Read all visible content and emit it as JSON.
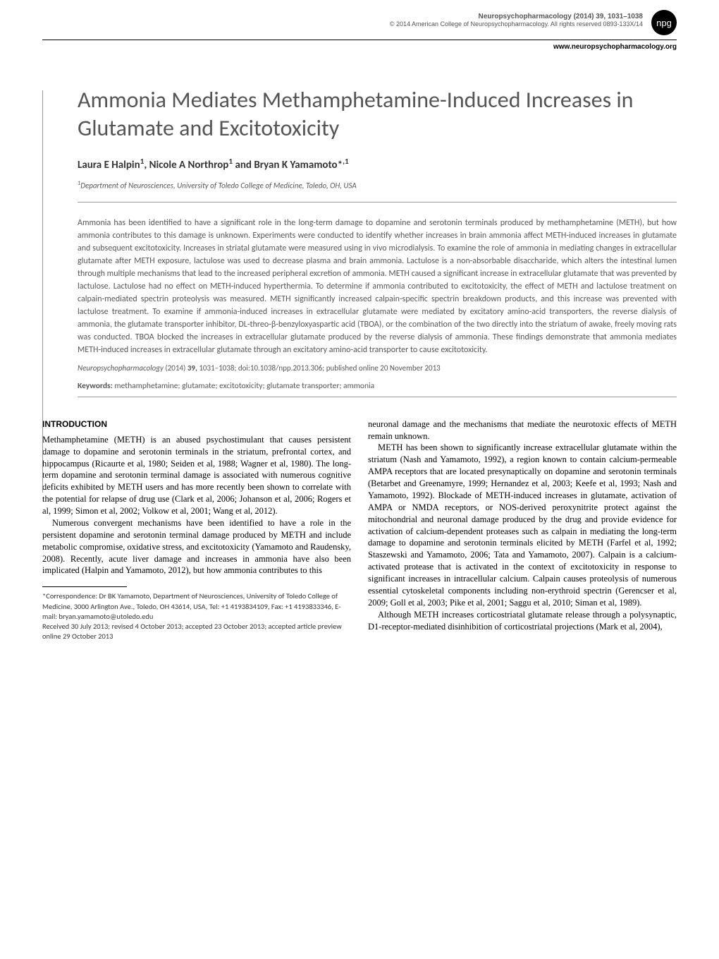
{
  "header": {
    "journal": "Neuropsychopharmacology (2014) 39, 1031–1038",
    "copyright": "© 2014 American College of Neuropsychopharmacology. All rights reserved 0893-133X/14",
    "badge": "npg",
    "website": "www.neuropsychopharmacology.org"
  },
  "title": "Ammonia Mediates Methamphetamine-Induced Increases in Glutamate and Excitotoxicity",
  "authors": "Laura E Halpin¹, Nicole A Northrop¹ and Bryan K Yamamoto*,¹",
  "affiliation": "¹Department of Neurosciences, University of Toledo College of Medicine, Toledo, OH, USA",
  "abstract": "Ammonia has been identified to have a significant role in the long-term damage to dopamine and serotonin terminals produced by methamphetamine (METH), but how ammonia contributes to this damage is unknown. Experiments were conducted to identify whether increases in brain ammonia affect METH-induced increases in glutamate and subsequent excitotoxicity. Increases in striatal glutamate were measured using in vivo microdialysis. To examine the role of ammonia in mediating changes in extracellular glutamate after METH exposure, lactulose was used to decrease plasma and brain ammonia. Lactulose is a non-absorbable disaccharide, which alters the intestinal lumen through multiple mechanisms that lead to the increased peripheral excretion of ammonia. METH caused a significant increase in extracellular glutamate that was prevented by lactulose. Lactulose had no effect on METH-induced hyperthermia. To determine if ammonia contributed to excitotoxicity, the effect of METH and lactulose treatment on calpain-mediated spectrin proteolysis was measured. METH significantly increased calpain-specific spectrin breakdown products, and this increase was prevented with lactulose treatment. To examine if ammonia-induced increases in extracellular glutamate were mediated by excitatory amino-acid transporters, the reverse dialysis of ammonia, the glutamate transporter inhibitor, DL-threo-β-benzyloxyaspartic acid (TBOA), or the combination of the two directly into the striatum of awake, freely moving rats was conducted. TBOA blocked the increases in extracellular glutamate produced by the reverse dialysis of ammonia. These findings demonstrate that ammonia mediates METH-induced increases in extracellular glutamate through an excitatory amino-acid transporter to cause excitotoxicity.",
  "citation": {
    "journal": "Neuropsychopharmacology",
    "details": " (2014) ",
    "volume": "39,",
    "pages": " 1031–1038; doi:10.1038/npp.2013.306; published online 20 November 2013"
  },
  "keywords": {
    "label": "Keywords:",
    "text": " methamphetamine; glutamate; excitotoxicity; glutamate transporter; ammonia"
  },
  "body": {
    "intro_heading": "INTRODUCTION",
    "col1_p1": "Methamphetamine (METH) is an abused psychostimulant that causes persistent damage to dopamine and serotonin terminals in the striatum, prefrontal cortex, and hippocampus (Ricaurte et al, 1980; Seiden et al, 1988; Wagner et al, 1980). The long-term dopamine and serotonin terminal damage is associated with numerous cognitive deficits exhibited by METH users and has more recently been shown to correlate with the potential for relapse of drug use (Clark et al, 2006; Johanson et al, 2006; Rogers et al, 1999; Simon et al, 2002; Volkow et al, 2001; Wang et al, 2012).",
    "col1_p2": "Numerous convergent mechanisms have been identified to have a role in the persistent dopamine and serotonin terminal damage produced by METH and include metabolic compromise, oxidative stress, and excitotoxicity (Yamamoto and Raudensky, 2008). Recently, acute liver damage and increases in ammonia have also been implicated (Halpin and Yamamoto, 2012), but how ammonia contributes to this",
    "col2_p1": "neuronal damage and the mechanisms that mediate the neurotoxic effects of METH remain unknown.",
    "col2_p2": "METH has been shown to significantly increase extracellular glutamate within the striatum (Nash and Yamamoto, 1992), a region known to contain calcium-permeable AMPA receptors that are located presynaptically on dopamine and serotonin terminals (Betarbet and Greenamyre, 1999; Hernandez et al, 2003; Keefe et al, 1993; Nash and Yamamoto, 1992). Blockade of METH-induced increases in glutamate, activation of AMPA or NMDA receptors, or NOS-derived peroxynitrite protect against the mitochondrial and neuronal damage produced by the drug and provide evidence for activation of calcium-dependent proteases such as calpain in mediating the long-term damage to dopamine and serotonin terminals elicited by METH (Farfel et al, 1992; Staszewski and Yamamoto, 2006; Tata and Yamamoto, 2007). Calpain is a calcium-activated protease that is activated in the context of excitotoxicity in response to significant increases in intracellular calcium. Calpain causes proteolysis of numerous essential cytoskeletal components including non-erythroid spectrin (Gerencser et al, 2009; Goll et al, 2003; Pike et al, 2001; Saggu et al, 2010; Siman et al, 1989).",
    "col2_p3": "Although METH increases corticostriatal glutamate release through a polysynaptic, D1-receptor-mediated disinhibition of corticostriatal projections (Mark et al, 2004),"
  },
  "footnote": {
    "correspondence": "*Correspondence: Dr BK Yamamoto, Department of Neurosciences, University of Toledo College of Medicine, 3000 Arlington Ave., Toledo, OH 43614, USA, Tel: +1 4193834109, Fax: +1 4193833346, E-mail: bryan.yamamoto@utoledo.edu",
    "received": "Received 30 July 2013; revised 4 October 2013; accepted 23 October 2013; accepted article preview online 29 October 2013"
  }
}
